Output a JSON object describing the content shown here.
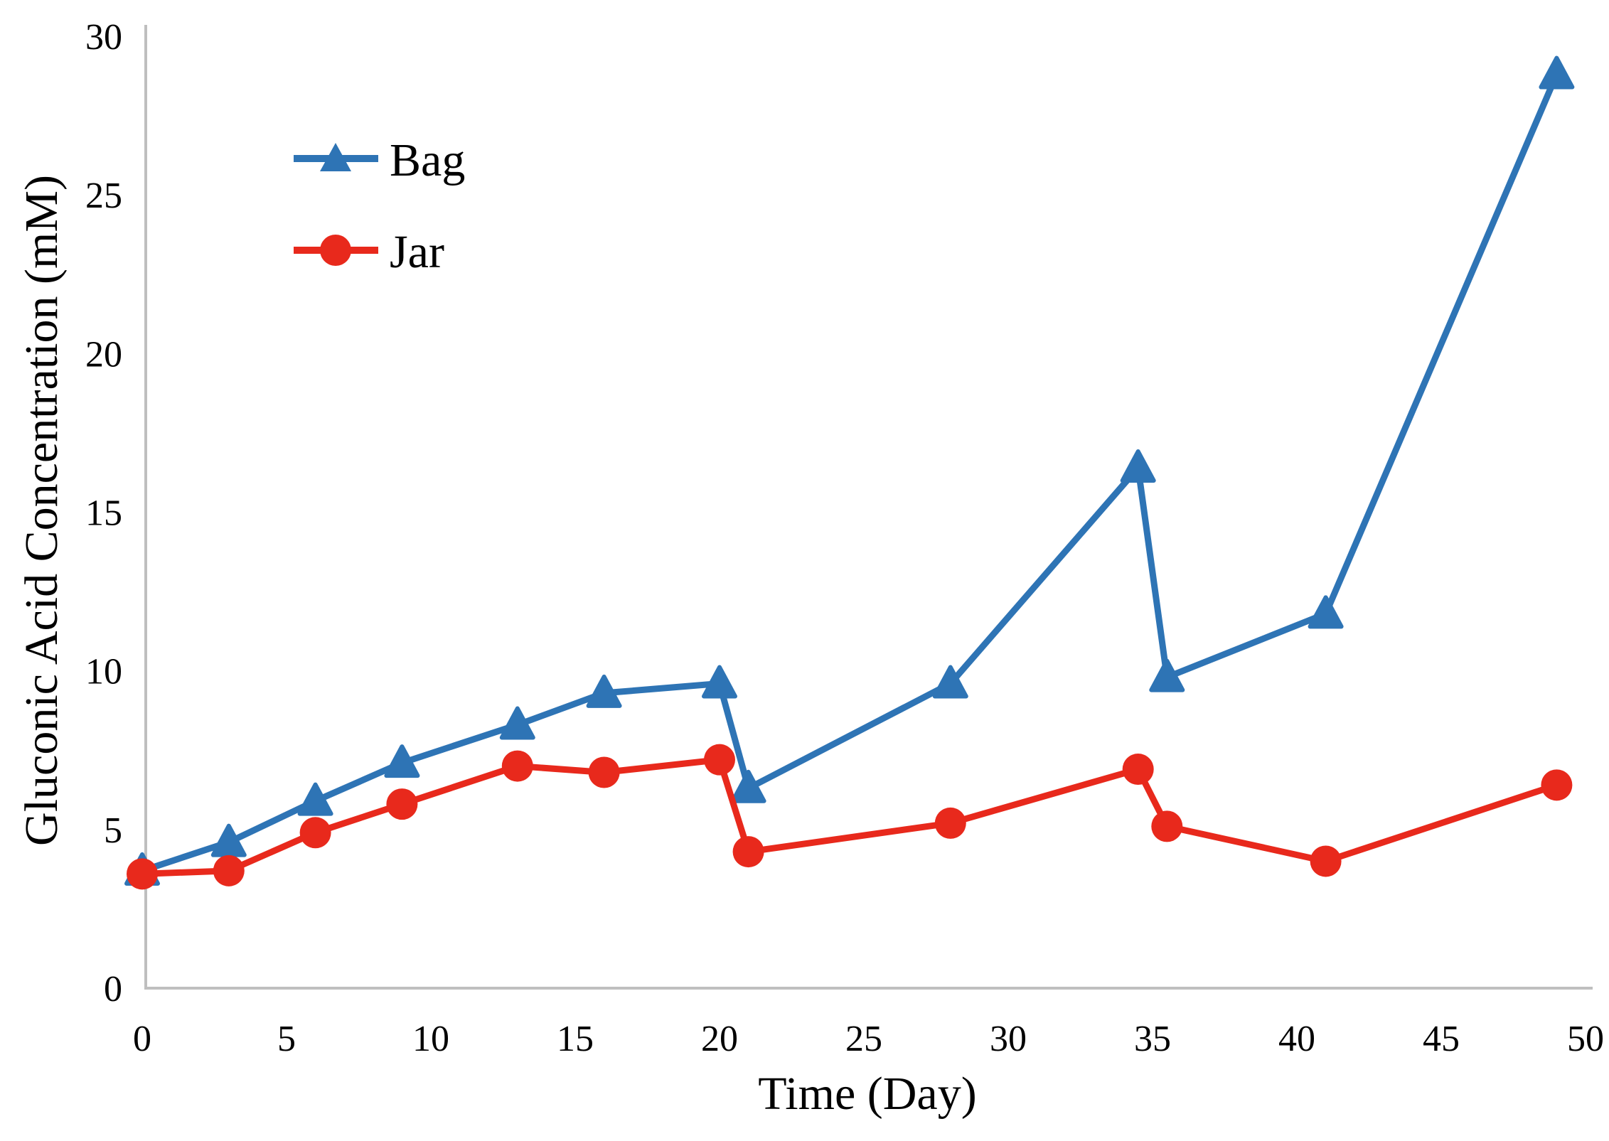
{
  "chart_data": {
    "type": "line",
    "title": "",
    "xlabel": "Time (Day)",
    "ylabel": "Gluconic Acid Concentration (mM)",
    "x": [
      0,
      3,
      6,
      9,
      13,
      16,
      20,
      21,
      28,
      34.5,
      35.5,
      41,
      49
    ],
    "series": [
      {
        "name": "Bag",
        "marker": "triangle",
        "color": "#2E74B5",
        "values": [
          3.7,
          4.6,
          5.9,
          7.1,
          8.3,
          9.3,
          9.6,
          6.3,
          9.6,
          16.4,
          9.8,
          11.8,
          28.8
        ]
      },
      {
        "name": "Jar",
        "marker": "circle",
        "color": "#E8291C",
        "values": [
          3.6,
          3.7,
          4.9,
          5.8,
          7.0,
          6.8,
          7.2,
          4.3,
          5.2,
          6.9,
          5.1,
          4.0,
          6.4
        ]
      }
    ],
    "xlim": [
      0,
      50
    ],
    "ylim": [
      0,
      30
    ],
    "x_ticks": [
      0,
      5,
      10,
      15,
      20,
      25,
      30,
      35,
      40,
      45,
      50
    ],
    "y_ticks": [
      0,
      5,
      10,
      15,
      20,
      25,
      30
    ],
    "grid": false,
    "legend_position": "upper-left-inside",
    "axis_color": "#BFBFBF",
    "text_color": "#000000"
  }
}
